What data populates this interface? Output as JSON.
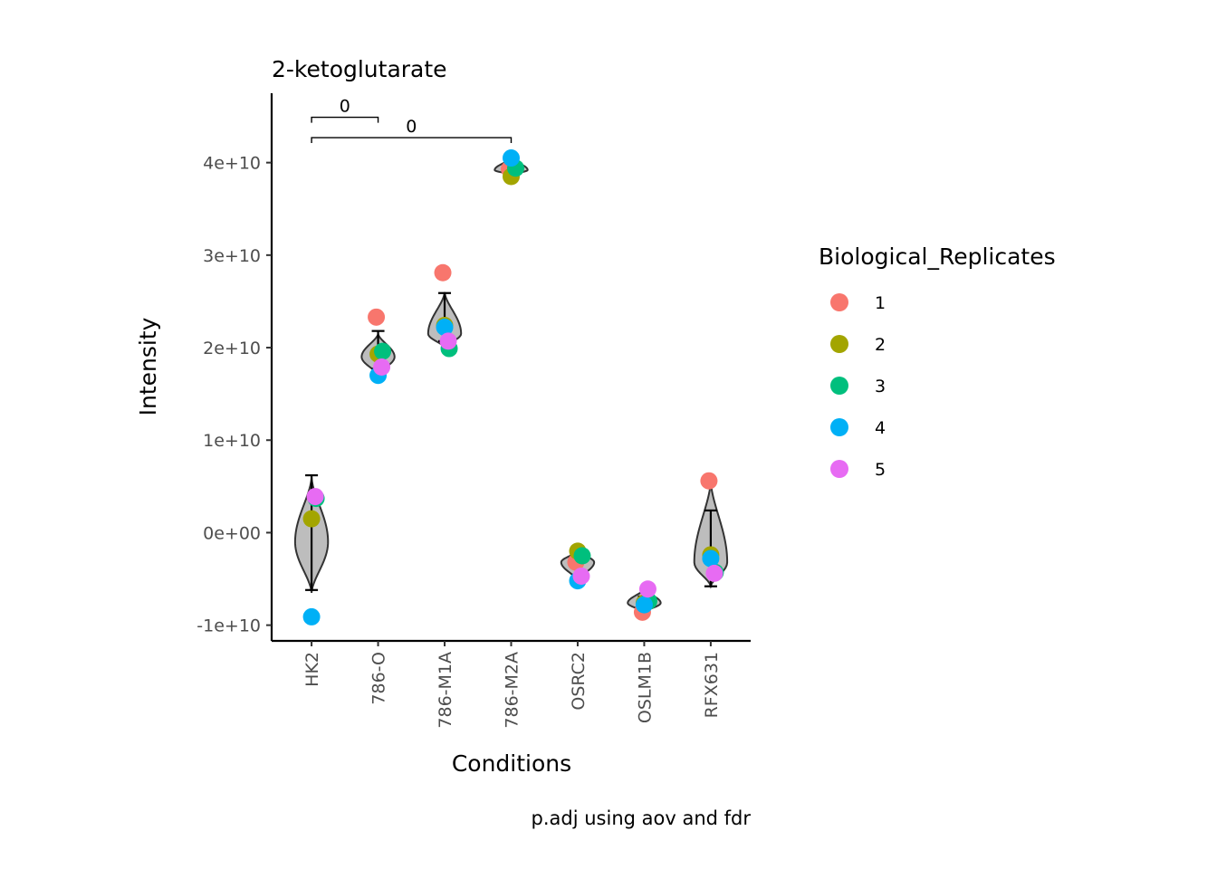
{
  "chart_data": {
    "type": "violin",
    "title": "2-ketoglutarate",
    "xlabel": "Conditions",
    "ylabel": "Intensity",
    "caption": "p.adj using  aov and fdr",
    "categories": [
      "HK2",
      "786-O",
      "786-M1A",
      "786-M2A",
      "OSRC2",
      "OSLM1B",
      "RFX631"
    ],
    "ylim": [
      -11700000000,
      47500000000
    ],
    "yticks": [
      -10000000000,
      0,
      10000000000,
      20000000000,
      30000000000,
      40000000000
    ],
    "ytick_labels": [
      "-1e+10",
      "0e+00",
      "1e+10",
      "2e+10",
      "3e+10",
      "4e+10"
    ],
    "legend": {
      "title": "Biological_Replicates",
      "position": "right",
      "entries": [
        {
          "label": "1",
          "color": "#F8766D"
        },
        {
          "label": "2",
          "color": "#A3A500"
        },
        {
          "label": "3",
          "color": "#00BF7D"
        },
        {
          "label": "4",
          "color": "#00B0F6"
        },
        {
          "label": "5",
          "color": "#E76BF3"
        }
      ]
    },
    "points": [
      {
        "category": "HK2",
        "values": [
          null,
          1500000000,
          3700000000,
          -9100000000,
          3900000000
        ]
      },
      {
        "category": "786-O",
        "values": [
          23300000000,
          19300000000,
          19600000000,
          17000000000,
          17900000000
        ]
      },
      {
        "category": "786-M1A",
        "values": [
          28100000000,
          22400000000,
          19900000000,
          22200000000,
          20700000000
        ]
      },
      {
        "category": "786-M2A",
        "values": [
          39300000000,
          38500000000,
          39400000000,
          40500000000,
          null
        ]
      },
      {
        "category": "OSRC2",
        "values": [
          -3200000000,
          -2000000000,
          -2500000000,
          -5200000000,
          -4700000000
        ]
      },
      {
        "category": "OSLM1B",
        "values": [
          -8600000000,
          -7600000000,
          -7400000000,
          -7800000000,
          -6100000000
        ]
      },
      {
        "category": "RFX631",
        "values": [
          5600000000,
          -2400000000,
          -4300000000,
          -2800000000,
          -4400000000
        ]
      }
    ],
    "error_bars": [
      {
        "category": "HK2",
        "low": -6200000000,
        "high": 6200000000
      },
      {
        "category": "786-O",
        "low": 17700000000,
        "high": 21800000000
      },
      {
        "category": "786-M1A",
        "low": 20700000000,
        "high": 25900000000
      },
      {
        "category": "786-M2A",
        "low": 38900000000,
        "high": 40400000000
      },
      {
        "category": "OSRC2",
        "low": -4600000000,
        "high": -2300000000
      },
      {
        "category": "OSLM1B",
        "low": -8000000000,
        "high": -6900000000
      },
      {
        "category": "RFX631",
        "low": -5800000000,
        "high": 2400000000
      }
    ],
    "violins": [
      {
        "category": "HK2",
        "min": -6500000000,
        "max": 6000000000,
        "peak": -1000000000
      },
      {
        "category": "786-O",
        "min": 17000000000,
        "max": 21500000000,
        "peak": 19000000000
      },
      {
        "category": "786-M1A",
        "min": 20000000000,
        "max": 26000000000,
        "peak": 21500000000
      },
      {
        "category": "786-M2A",
        "min": 38700000000,
        "max": 40500000000,
        "peak": 39200000000
      },
      {
        "category": "OSRC2",
        "min": -5200000000,
        "max": -2000000000,
        "peak": -3200000000
      },
      {
        "category": "OSLM1B",
        "min": -8600000000,
        "max": -6100000000,
        "peak": -7600000000
      },
      {
        "category": "RFX631",
        "min": -5800000000,
        "max": 5600000000,
        "peak": -3200000000
      }
    ],
    "significance": [
      {
        "from": "HK2",
        "to": "786-O",
        "y": 44900000000,
        "label": "0"
      },
      {
        "from": "HK2",
        "to": "786-M2A",
        "y": 42700000000,
        "label": "0"
      }
    ]
  }
}
